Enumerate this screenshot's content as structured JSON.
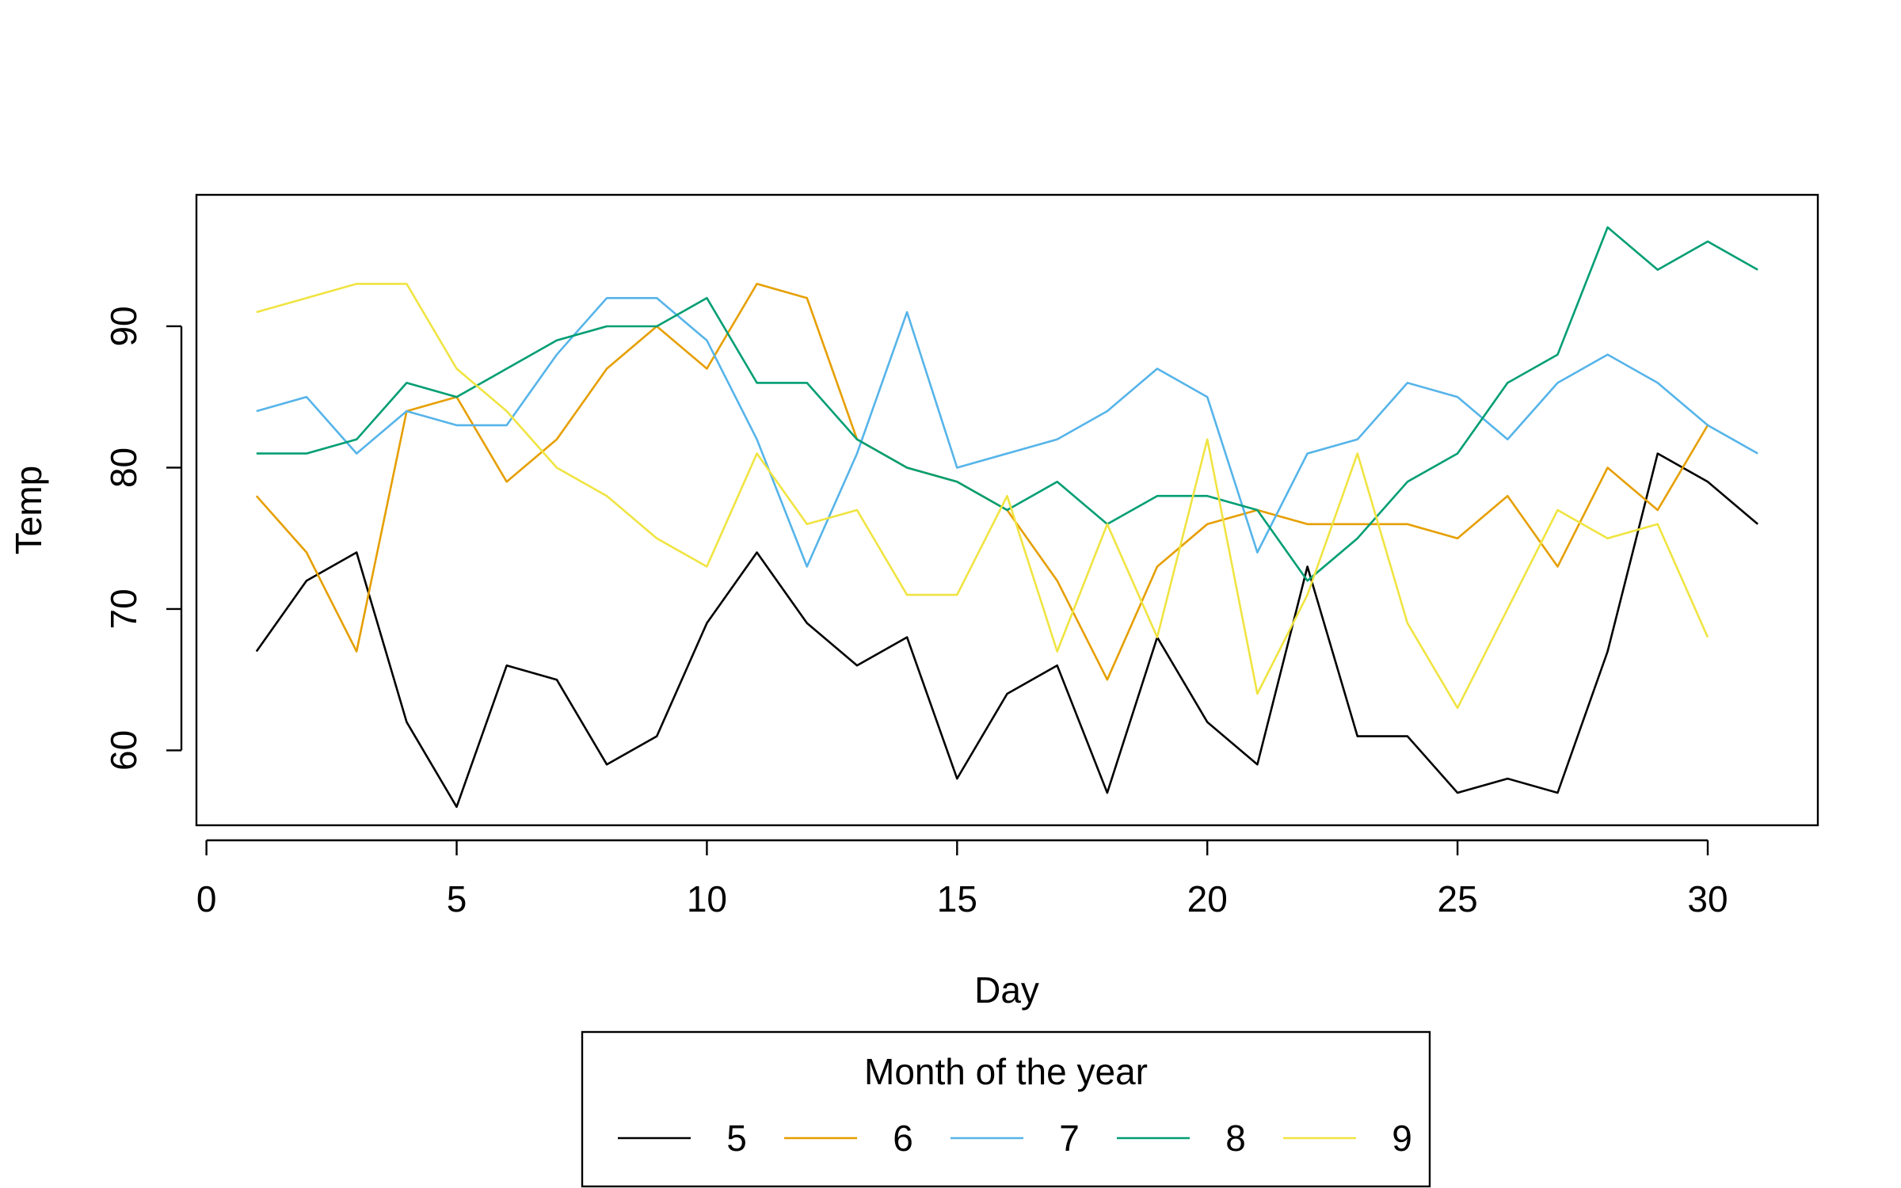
{
  "chart_data": {
    "type": "line",
    "title": "",
    "xlabel": "Day",
    "ylabel": "Temp",
    "xlim": [
      -0.2,
      32.2
    ],
    "ylim": [
      54.7,
      99.3
    ],
    "xticks": [
      0,
      5,
      10,
      15,
      20,
      25,
      30
    ],
    "yticks": [
      60,
      70,
      80,
      90
    ],
    "grid": false,
    "legend": {
      "title": "Month of the year",
      "placement": "bottom-center",
      "horizontal": true
    },
    "series": [
      {
        "name": "5",
        "color": "#000000",
        "x": [
          1,
          2,
          3,
          4,
          5,
          6,
          7,
          8,
          9,
          10,
          11,
          12,
          13,
          14,
          15,
          16,
          17,
          18,
          19,
          20,
          21,
          22,
          23,
          24,
          25,
          26,
          27,
          28,
          29,
          30,
          31
        ],
        "values": [
          67,
          72,
          74,
          62,
          56,
          66,
          65,
          59,
          61,
          69,
          74,
          69,
          66,
          68,
          58,
          64,
          66,
          57,
          68,
          62,
          59,
          73,
          61,
          61,
          57,
          58,
          57,
          67,
          81,
          79,
          76
        ]
      },
      {
        "name": "6",
        "color": "#E69F00",
        "x": [
          1,
          2,
          3,
          4,
          5,
          6,
          7,
          8,
          9,
          10,
          11,
          12,
          13,
          14,
          15,
          16,
          17,
          18,
          19,
          20,
          21,
          22,
          23,
          24,
          25,
          26,
          27,
          28,
          29,
          30
        ],
        "values": [
          78,
          74,
          67,
          84,
          85,
          79,
          82,
          87,
          90,
          87,
          93,
          92,
          82,
          80,
          79,
          77,
          72,
          65,
          73,
          76,
          77,
          76,
          76,
          76,
          75,
          78,
          73,
          80,
          77,
          83
        ]
      },
      {
        "name": "7",
        "color": "#56B4E9",
        "x": [
          1,
          2,
          3,
          4,
          5,
          6,
          7,
          8,
          9,
          10,
          11,
          12,
          13,
          14,
          15,
          16,
          17,
          18,
          19,
          20,
          21,
          22,
          23,
          24,
          25,
          26,
          27,
          28,
          29,
          30,
          31
        ],
        "values": [
          84,
          85,
          81,
          84,
          83,
          83,
          88,
          92,
          92,
          89,
          82,
          73,
          81,
          91,
          80,
          81,
          82,
          84,
          87,
          85,
          74,
          81,
          82,
          86,
          85,
          82,
          86,
          88,
          86,
          83,
          81
        ]
      },
      {
        "name": "8",
        "color": "#009E73",
        "x": [
          1,
          2,
          3,
          4,
          5,
          6,
          7,
          8,
          9,
          10,
          11,
          12,
          13,
          14,
          15,
          16,
          17,
          18,
          19,
          20,
          21,
          22,
          23,
          24,
          25,
          26,
          27,
          28,
          29,
          30,
          31
        ],
        "values": [
          81,
          81,
          82,
          86,
          85,
          87,
          89,
          90,
          90,
          92,
          86,
          86,
          82,
          80,
          79,
          77,
          79,
          76,
          78,
          78,
          77,
          72,
          75,
          79,
          81,
          86,
          88,
          97,
          94,
          96,
          94
        ]
      },
      {
        "name": "9",
        "color": "#F0E442",
        "x": [
          1,
          2,
          3,
          4,
          5,
          6,
          7,
          8,
          9,
          10,
          11,
          12,
          13,
          14,
          15,
          16,
          17,
          18,
          19,
          20,
          21,
          22,
          23,
          24,
          25,
          26,
          27,
          28,
          29,
          30
        ],
        "values": [
          91,
          92,
          93,
          93,
          87,
          84,
          80,
          78,
          75,
          73,
          81,
          76,
          77,
          71,
          71,
          78,
          67,
          76,
          68,
          82,
          64,
          71,
          81,
          69,
          63,
          70,
          77,
          75,
          76,
          68
        ]
      }
    ]
  }
}
